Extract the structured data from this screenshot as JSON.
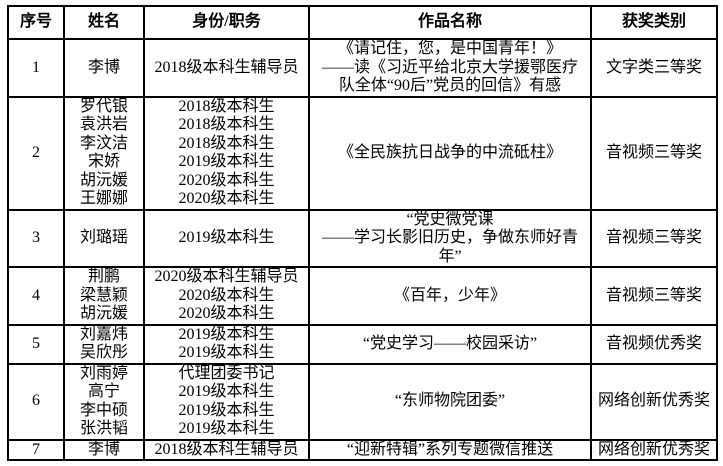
{
  "table": {
    "headers": [
      "序号",
      "姓名",
      "身份/职务",
      "作品名称",
      "获奖类别"
    ],
    "rows": [
      {
        "no": "1",
        "names": [
          "李博"
        ],
        "roles": [
          "2018级本科生辅导员"
        ],
        "work_lines": [
          "《请记住，您，是中国青年！》",
          "——读《习近平给北京大学援鄂医疗",
          "队全体“90后”党员的回信》有感"
        ],
        "award": "文字类三等奖"
      },
      {
        "no": "2",
        "names": [
          "罗代银",
          "袁洪岩",
          "李汶洁",
          "宋娇",
          "胡沅媛",
          "王娜娜"
        ],
        "roles": [
          "2018级本科生",
          "2018级本科生",
          "2018级本科生",
          "2019级本科生",
          "2020级本科生",
          "2020级本科生"
        ],
        "work_lines": [
          "《全民族抗日战争的中流砥柱》"
        ],
        "award": "音视频三等奖"
      },
      {
        "no": "3",
        "names": [
          "刘璐瑶"
        ],
        "roles": [
          "2019级本科生"
        ],
        "work_lines": [
          "“党史微党课",
          "——学习长影旧历史，争做东师好青",
          "年”"
        ],
        "award": "音视频三等奖"
      },
      {
        "no": "4",
        "names": [
          "荆鹏",
          "梁慧颖",
          "胡沅媛"
        ],
        "roles": [
          "2020级本科生辅导员",
          "2020级本科生",
          "2020级本科生"
        ],
        "work_lines": [
          "《百年，少年》"
        ],
        "award": "音视频三等奖"
      },
      {
        "no": "5",
        "names": [
          "刘嘉炜",
          "吴欣彤"
        ],
        "roles": [
          "2019级本科生",
          "2019级本科生"
        ],
        "work_lines": [
          "“党史学习——校园采访”"
        ],
        "award": "音视频优秀奖"
      },
      {
        "no": "6",
        "names": [
          "刘雨婷",
          "高宁",
          "李中硕",
          "张洪韬"
        ],
        "roles": [
          "代理团委书记",
          "2019级本科生",
          "2019级本科生",
          "2019级本科生"
        ],
        "work_lines": [
          "“东师物院团委”"
        ],
        "award": "网络创新优秀奖"
      },
      {
        "no": "7",
        "names": [
          "李博"
        ],
        "roles": [
          "2018级本科生辅导员"
        ],
        "work_lines": [
          "“迎新特辑”系列专题微信推送"
        ],
        "award": "网络创新优秀奖"
      }
    ]
  },
  "colors": {
    "border": "#000000",
    "text": "#000000",
    "background": "#ffffff"
  }
}
